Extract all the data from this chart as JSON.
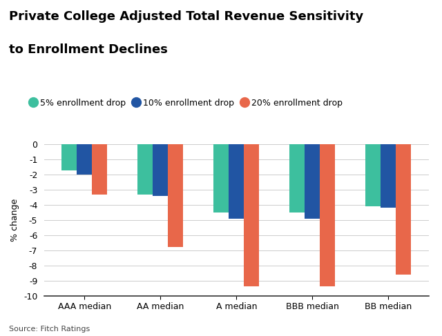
{
  "title_line1": "Private College Adjusted Total Revenue Sensitivity",
  "title_line2": "to Enrollment Declines",
  "categories": [
    "AAA median",
    "AA median",
    "A median",
    "BBB median",
    "BB median"
  ],
  "series": {
    "5% enrollment drop": [
      -1.7,
      -3.3,
      -4.5,
      -4.5,
      -4.1
    ],
    "10% enrollment drop": [
      -2.0,
      -3.4,
      -4.9,
      -4.9,
      -4.2
    ],
    "20% enrollment drop": [
      -3.3,
      -6.8,
      -9.4,
      -9.4,
      -8.6
    ]
  },
  "colors": {
    "5% enrollment drop": "#3dbf9e",
    "10% enrollment drop": "#2155a3",
    "20% enrollment drop": "#e8674a"
  },
  "ylabel": "% change",
  "ylim": [
    -10,
    0
  ],
  "yticks": [
    0,
    -1,
    -2,
    -3,
    -4,
    -5,
    -6,
    -7,
    -8,
    -9,
    -10
  ],
  "source": "Source: Fitch Ratings",
  "background_color": "#ffffff",
  "bar_width": 0.2
}
